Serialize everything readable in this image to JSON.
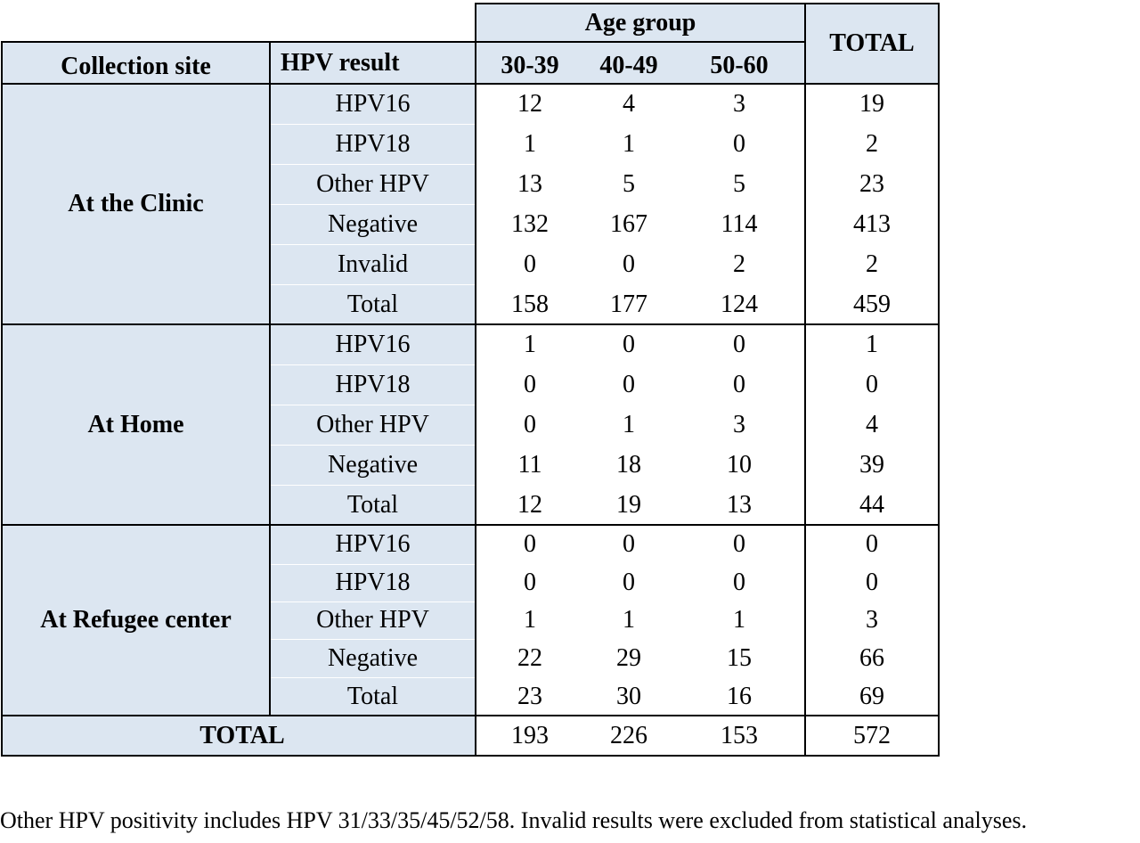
{
  "table": {
    "header": {
      "age_group": "Age group",
      "total": "TOTAL",
      "collection_site": "Collection site",
      "hpv_result": "HPV result",
      "age_columns": [
        "30-39",
        "40-49",
        "50-60"
      ]
    },
    "sites": [
      {
        "name": "At the Clinic",
        "rows": [
          {
            "result": "HPV16",
            "values": [
              "12",
              "4",
              "3"
            ],
            "total": "19"
          },
          {
            "result": "HPV18",
            "values": [
              "1",
              "1",
              "0"
            ],
            "total": "2"
          },
          {
            "result": "Other HPV",
            "values": [
              "13",
              "5",
              "5"
            ],
            "total": "23"
          },
          {
            "result": "Negative",
            "values": [
              "132",
              "167",
              "114"
            ],
            "total": "413"
          },
          {
            "result": "Invalid",
            "values": [
              "0",
              "0",
              "2"
            ],
            "total": "2"
          },
          {
            "result": "Total",
            "values": [
              "158",
              "177",
              "124"
            ],
            "total": "459"
          }
        ]
      },
      {
        "name": "At Home",
        "rows": [
          {
            "result": "HPV16",
            "values": [
              "1",
              "0",
              "0"
            ],
            "total": "1"
          },
          {
            "result": "HPV18",
            "values": [
              "0",
              "0",
              "0"
            ],
            "total": "0"
          },
          {
            "result": "Other HPV",
            "values": [
              "0",
              "1",
              "3"
            ],
            "total": "4"
          },
          {
            "result": "Negative",
            "values": [
              "11",
              "18",
              "10"
            ],
            "total": "39"
          },
          {
            "result": "Total",
            "values": [
              "12",
              "19",
              "13"
            ],
            "total": "44"
          }
        ]
      },
      {
        "name": "At Refugee center",
        "rows": [
          {
            "result": "HPV16",
            "values": [
              "0",
              "0",
              "0"
            ],
            "total": "0"
          },
          {
            "result": "HPV18",
            "values": [
              "0",
              "0",
              "0"
            ],
            "total": "0"
          },
          {
            "result": "Other HPV",
            "values": [
              "1",
              "1",
              "1"
            ],
            "total": "3"
          },
          {
            "result": "Negative",
            "values": [
              "22",
              "29",
              "15"
            ],
            "total": "66"
          },
          {
            "result": "Total",
            "values": [
              "23",
              "30",
              "16"
            ],
            "total": "69"
          }
        ]
      }
    ],
    "grand_total": {
      "label": "TOTAL",
      "values": [
        "193",
        "226",
        "153"
      ],
      "total": "572"
    }
  },
  "footnote": "Other HPV positivity includes HPV 31/33/35/45/52/58. Invalid results were excluded from statistical analyses.",
  "colors": {
    "header_shade": "#dce6f1",
    "border": "#000000"
  }
}
